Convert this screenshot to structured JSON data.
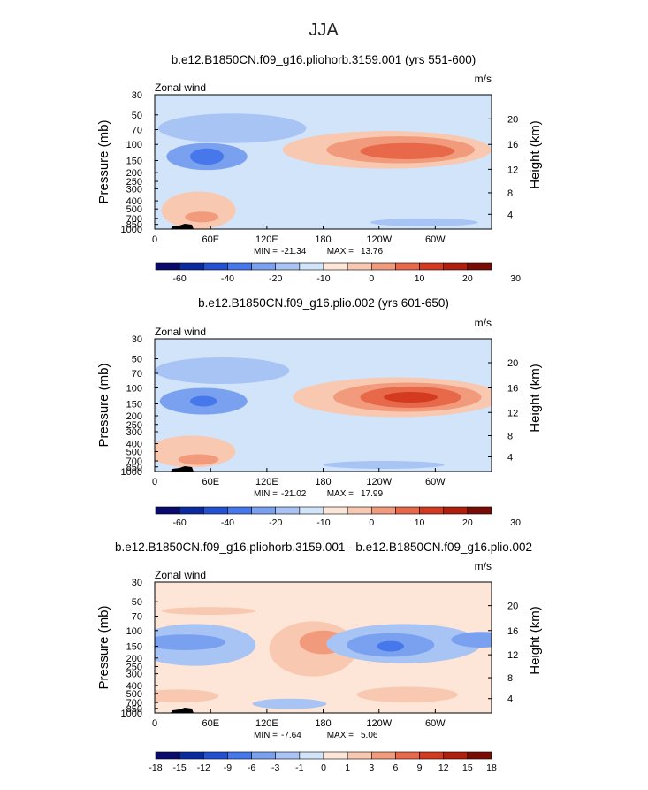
{
  "figure_title": "JJA",
  "chart_data": [
    {
      "type": "heatmap",
      "title": "b.e12.B1850CN.f09_g16.pliohorb.3159.001 (yrs 551-600)",
      "variable_label": "Zonal wind",
      "units": "m/s",
      "ylabel": "Pressure (mb)",
      "ylabel_right": "Height (km)",
      "x_ticks": [
        "0",
        "60E",
        "120E",
        "180",
        "120W",
        "60W"
      ],
      "y_ticks": [
        "30",
        "50",
        "70",
        "100",
        "150",
        "200",
        "250",
        "300",
        "400",
        "500",
        "700",
        "850",
        "1000"
      ],
      "y_right_ticks": [
        "20",
        "16",
        "12",
        "8",
        "4"
      ],
      "min_label": "MIN =",
      "min_value": "-21.34",
      "max_label": "MAX =",
      "max_value": "13.76",
      "colorbar_labels": [
        "-60",
        "-40",
        "-20",
        "-10",
        "0",
        "10",
        "20",
        "30"
      ],
      "colorbar_colors": [
        "#0a0a6e",
        "#0a2aa0",
        "#2450d2",
        "#4678eb",
        "#7aa0f0",
        "#a8c4f5",
        "#d2e4fa",
        "#fde6d8",
        "#f8c8b0",
        "#f29a7c",
        "#e8684a",
        "#d43a20",
        "#b01e0e",
        "#7a0c06"
      ],
      "features": [
        {
          "name": "stratospheric-easterlies",
          "cx": 2.3,
          "cy": 7.5,
          "rx": 2.2,
          "ry": 1.1,
          "level": -1
        },
        {
          "name": "tropical-easterly-jet",
          "cx": 1.55,
          "cy": 5.4,
          "rx": 1.2,
          "ry": 1.0,
          "level": -2
        },
        {
          "name": "tropical-easterly-jet-core",
          "cx": 1.55,
          "cy": 5.4,
          "rx": 0.5,
          "ry": 0.6,
          "level": -3
        },
        {
          "name": "southern-westerly-jet",
          "cx": 6.9,
          "cy": 5.9,
          "rx": 3.1,
          "ry": 1.4,
          "level": 1
        },
        {
          "name": "southern-westerly-jet-mid",
          "cx": 7.3,
          "cy": 5.9,
          "rx": 2.2,
          "ry": 1.0,
          "level": 2
        },
        {
          "name": "southern-westerly-jet-core",
          "cx": 7.5,
          "cy": 5.8,
          "rx": 1.4,
          "ry": 0.6,
          "level": 3
        },
        {
          "name": "lower-tropospheric-westerlies",
          "cx": 1.3,
          "cy": 1.4,
          "rx": 1.1,
          "ry": 1.4,
          "level": 1
        },
        {
          "name": "monsoon-low-level-jet",
          "cx": 1.4,
          "cy": 0.9,
          "rx": 0.5,
          "ry": 0.4,
          "level": 2
        },
        {
          "name": "surface-easterlies",
          "cx": 8.0,
          "cy": 0.5,
          "rx": 1.6,
          "ry": 0.3,
          "level": -1
        }
      ]
    },
    {
      "type": "heatmap",
      "title": "b.e12.B1850CN.f09_g16.plio.002 (yrs 601-650)",
      "variable_label": "Zonal wind",
      "units": "m/s",
      "ylabel": "Pressure (mb)",
      "ylabel_right": "Height (km)",
      "x_ticks": [
        "0",
        "60E",
        "120E",
        "180",
        "120W",
        "60W"
      ],
      "y_ticks": [
        "30",
        "50",
        "70",
        "100",
        "150",
        "200",
        "250",
        "300",
        "400",
        "500",
        "700",
        "850",
        "1000"
      ],
      "y_right_ticks": [
        "20",
        "16",
        "12",
        "8",
        "4"
      ],
      "min_label": "MIN =",
      "min_value": "-21.02",
      "max_label": "MAX =",
      "max_value": "17.99",
      "colorbar_labels": [
        "-60",
        "-40",
        "-20",
        "-10",
        "0",
        "10",
        "20",
        "30"
      ],
      "colorbar_colors": [
        "#0a0a6e",
        "#0a2aa0",
        "#2450d2",
        "#4678eb",
        "#7aa0f0",
        "#a8c4f5",
        "#d2e4fa",
        "#fde6d8",
        "#f8c8b0",
        "#f29a7c",
        "#e8684a",
        "#d43a20",
        "#b01e0e",
        "#7a0c06"
      ],
      "features": [
        {
          "name": "stratospheric-easterlies",
          "cx": 2.0,
          "cy": 7.6,
          "rx": 2.0,
          "ry": 1.0,
          "level": -1
        },
        {
          "name": "tropical-easterly-jet",
          "cx": 1.45,
          "cy": 5.3,
          "rx": 1.3,
          "ry": 1.0,
          "level": -2
        },
        {
          "name": "tropical-easterly-jet-core",
          "cx": 1.45,
          "cy": 5.3,
          "rx": 0.4,
          "ry": 0.4,
          "level": -3
        },
        {
          "name": "southern-westerly-jet",
          "cx": 7.2,
          "cy": 5.6,
          "rx": 3.1,
          "ry": 1.5,
          "level": 1
        },
        {
          "name": "southern-westerly-jet-mid",
          "cx": 7.5,
          "cy": 5.6,
          "rx": 2.2,
          "ry": 1.1,
          "level": 2
        },
        {
          "name": "southern-westerly-jet-core",
          "cx": 7.6,
          "cy": 5.6,
          "rx": 1.5,
          "ry": 0.8,
          "level": 3
        },
        {
          "name": "southern-westerly-jet-max",
          "cx": 7.6,
          "cy": 5.6,
          "rx": 0.8,
          "ry": 0.4,
          "level": 4
        },
        {
          "name": "lower-tropospheric-westerlies",
          "cx": 1.1,
          "cy": 1.5,
          "rx": 1.3,
          "ry": 1.2,
          "level": 1
        },
        {
          "name": "monsoon-low-level-jet",
          "cx": 1.3,
          "cy": 0.9,
          "rx": 0.6,
          "ry": 0.4,
          "level": 2
        },
        {
          "name": "surface-easterlies",
          "cx": 6.8,
          "cy": 0.5,
          "rx": 1.8,
          "ry": 0.3,
          "level": -1
        }
      ]
    },
    {
      "type": "heatmap",
      "title": "b.e12.B1850CN.f09_g16.pliohorb.3159.001 - b.e12.B1850CN.f09_g16.plio.002",
      "variable_label": "Zonal wind",
      "units": "m/s",
      "ylabel": "Pressure (mb)",
      "ylabel_right": "Height (km)",
      "x_ticks": [
        "0",
        "60E",
        "120E",
        "180",
        "120W",
        "60W"
      ],
      "y_ticks": [
        "30",
        "50",
        "70",
        "100",
        "150",
        "200",
        "250",
        "300",
        "400",
        "500",
        "700",
        "850",
        "1000"
      ],
      "y_right_ticks": [
        "20",
        "16",
        "12",
        "8",
        "4"
      ],
      "min_label": "MIN =",
      "min_value": "-7.64",
      "max_label": "MAX =",
      "max_value": "5.06",
      "colorbar_labels": [
        "-18",
        "-15",
        "-12",
        "-9",
        "-6",
        "-3",
        "-1",
        "0",
        "1",
        "3",
        "6",
        "9",
        "12",
        "15",
        "18"
      ],
      "colorbar_colors": [
        "#0a0a6e",
        "#0a2aa0",
        "#2450d2",
        "#4678eb",
        "#7aa0f0",
        "#a8c4f5",
        "#d2e4fa",
        "#fde6d8",
        "#f8c8b0",
        "#f29a7c",
        "#e8684a",
        "#d43a20",
        "#b01e0e",
        "#7a0c06"
      ],
      "features": [
        {
          "name": "tropical-easterly-change",
          "cx": 1.2,
          "cy": 5.2,
          "rx": 1.8,
          "ry": 1.6,
          "level": -1
        },
        {
          "name": "tropical-easterly-change-core",
          "cx": 0.9,
          "cy": 5.4,
          "rx": 1.2,
          "ry": 0.6,
          "level": -2
        },
        {
          "name": "central-pacific-westerly-change",
          "cx": 4.7,
          "cy": 4.9,
          "rx": 1.3,
          "ry": 2.1,
          "level": 1
        },
        {
          "name": "central-pacific-westerly-change-core",
          "cx": 5.0,
          "cy": 5.4,
          "rx": 0.7,
          "ry": 0.9,
          "level": 2
        },
        {
          "name": "stratospheric-westerly-change",
          "cx": 1.6,
          "cy": 7.8,
          "rx": 1.4,
          "ry": 0.3,
          "level": 1
        },
        {
          "name": "eastern-pacific-easterly-change",
          "cx": 7.4,
          "cy": 5.3,
          "rx": 2.3,
          "ry": 1.5,
          "level": -1
        },
        {
          "name": "eastern-pacific-easterly-change-mid",
          "cx": 7.0,
          "cy": 5.2,
          "rx": 1.3,
          "ry": 0.9,
          "level": -2
        },
        {
          "name": "eastern-pacific-easterly-change-core",
          "cx": 7.0,
          "cy": 5.1,
          "rx": 0.4,
          "ry": 0.4,
          "level": -3
        },
        {
          "name": "atlantic-easterly-change",
          "cx": 9.7,
          "cy": 5.6,
          "rx": 0.9,
          "ry": 0.6,
          "level": -2
        },
        {
          "name": "lower-level-westerly-change",
          "cx": 0.7,
          "cy": 1.3,
          "rx": 1.2,
          "ry": 0.5,
          "level": 1
        },
        {
          "name": "lower-level-westerly-change-west",
          "cx": 7.5,
          "cy": 1.4,
          "rx": 1.5,
          "ry": 0.6,
          "level": 1
        },
        {
          "name": "surface-easterly-change",
          "cx": 4.0,
          "cy": 0.7,
          "rx": 1.1,
          "ry": 0.4,
          "level": -1
        }
      ]
    }
  ]
}
